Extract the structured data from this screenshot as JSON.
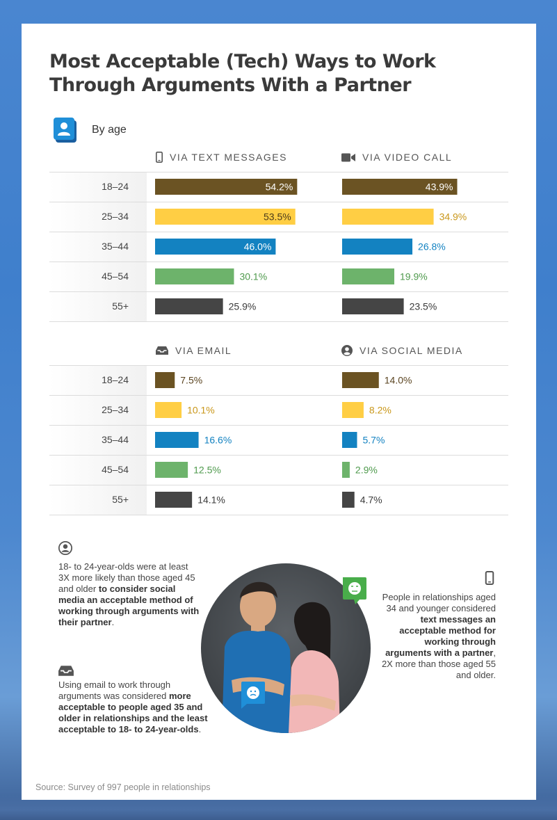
{
  "title": "Most Acceptable (Tech) Ways to Work Through Arguments With a Partner",
  "section_label": "By age",
  "age_groups": [
    "18–24",
    "25–34",
    "35–44",
    "45–54",
    "55+"
  ],
  "colors": [
    "#6b5323",
    "#ffce44",
    "#1382c1",
    "#6db36b",
    "#454545"
  ],
  "value_text_colors": [
    "#5a4420",
    "#c9971a",
    "#1382c1",
    "#4f9a4d",
    "#3a3a3a"
  ],
  "panels": [
    {
      "label": "VIA TEXT MESSAGES",
      "icon": "phone-icon"
    },
    {
      "label": "VIA VIDEO CALL",
      "icon": "video-camera-icon"
    },
    {
      "label": "VIA EMAIL",
      "icon": "inbox-icon"
    },
    {
      "label": "VIA SOCIAL MEDIA",
      "icon": "user-circle-icon"
    }
  ],
  "chart_data": [
    {
      "type": "bar",
      "title": "VIA TEXT MESSAGES",
      "categories": [
        "18–24",
        "25–34",
        "35–44",
        "45–54",
        "55+"
      ],
      "values": [
        54.2,
        53.5,
        46.0,
        30.1,
        25.9
      ],
      "labels": [
        "54.2%",
        "53.5%",
        "46.0%",
        "30.1%",
        "25.9%"
      ]
    },
    {
      "type": "bar",
      "title": "VIA VIDEO CALL",
      "categories": [
        "18–24",
        "25–34",
        "35–44",
        "45–54",
        "55+"
      ],
      "values": [
        43.9,
        34.9,
        26.8,
        19.9,
        23.5
      ],
      "labels": [
        "43.9%",
        "34.9%",
        "26.8%",
        "19.9%",
        "23.5%"
      ]
    },
    {
      "type": "bar",
      "title": "VIA EMAIL",
      "categories": [
        "18–24",
        "25–34",
        "35–44",
        "45–54",
        "55+"
      ],
      "values": [
        7.5,
        10.1,
        16.6,
        12.5,
        14.1
      ],
      "labels": [
        "7.5%",
        "10.1%",
        "16.6%",
        "12.5%",
        "14.1%"
      ]
    },
    {
      "type": "bar",
      "title": "VIA SOCIAL MEDIA",
      "categories": [
        "18–24",
        "25–34",
        "35–44",
        "45–54",
        "55+"
      ],
      "values": [
        14.0,
        8.2,
        5.7,
        2.9,
        4.7
      ],
      "labels": [
        "14.0%",
        "8.2%",
        "5.7%",
        "2.9%",
        "4.7%"
      ]
    }
  ],
  "insights": {
    "social": {
      "plain1": "18- to 24-year-olds were at least 3X more likely than those aged 45 and older ",
      "bold1": "to consider social media an acceptable method of working through arguments with their",
      "plain2": " ",
      "bold2": "partner",
      "plain3": "."
    },
    "email": {
      "plain1": "Using email to work through arguments was considered ",
      "bold1": "more acceptable to people aged 35 and older in relationships and the least acceptable to 18- to 24-year-olds",
      "plain2": "."
    },
    "text": {
      "plain1": "People in relationships aged 34 and younger considered ",
      "bold1": "text messages an acceptable method for working through arguments with a partner",
      "plain2": ", 2X more than those aged 55 and older."
    }
  },
  "source": "Source: Survey of 997 people in relationships"
}
